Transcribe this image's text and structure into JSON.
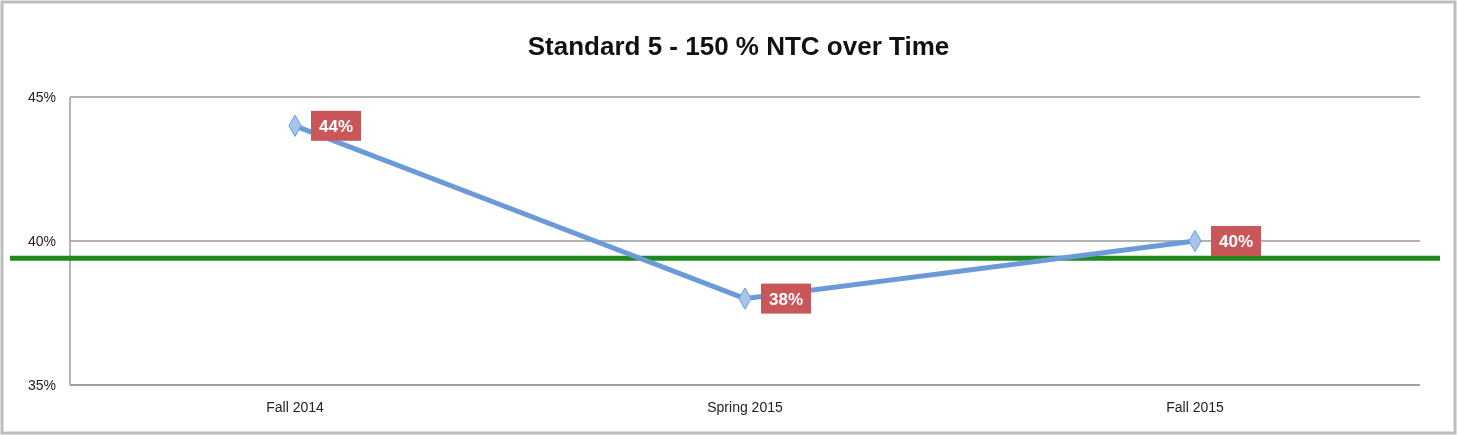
{
  "chart_data": {
    "type": "line",
    "title": "Standard 5 - 150 % NTC over Time",
    "categories": [
      "Fall 2014",
      "Spring 2015",
      "Fall 2015"
    ],
    "series": [
      {
        "color": "#6a9bd8",
        "values": [
          44,
          38,
          40
        ],
        "value_labels": [
          "44%",
          "38%",
          "40%"
        ]
      }
    ],
    "ylim": [
      35,
      45
    ],
    "yticks": [
      {
        "value": 35,
        "label": "35%"
      },
      {
        "value": 40,
        "label": "40%"
      },
      {
        "value": 45,
        "label": "45%"
      }
    ],
    "grid": "y",
    "marker": "diamond",
    "line_style": "solid",
    "ref_lines": [
      {
        "axis": "y",
        "value": 39.4,
        "color": "#1e8a1e",
        "line_style": "solid"
      }
    ]
  }
}
